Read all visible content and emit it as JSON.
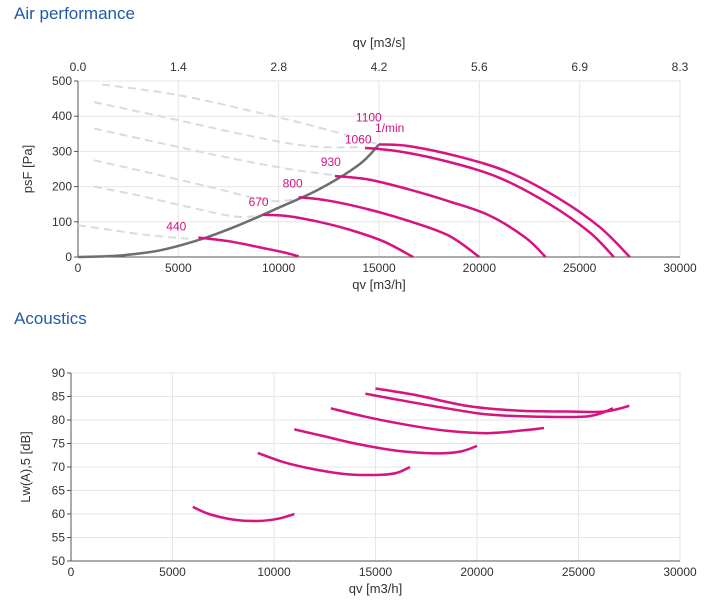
{
  "sections": {
    "air_title": "Air performance",
    "acoustics_title": "Acoustics"
  },
  "colors": {
    "accent": "#d6137f",
    "system_curve": "#6e6e6e",
    "dashed": "#d5dce6",
    "title": "#1f5aa8",
    "grid": "#e6e6e6"
  },
  "chart_data": [
    {
      "type": "line",
      "xlabel": "qv [m3/h]",
      "x2label": "qv [m3/s]",
      "ylabel": "psF [Pa]",
      "xlim": [
        0,
        30000
      ],
      "ylim": [
        0,
        500
      ],
      "xticks": [
        0,
        5000,
        10000,
        15000,
        20000,
        25000,
        30000
      ],
      "yticks": [
        0,
        100,
        200,
        300,
        400,
        500
      ],
      "x2ticks": [
        "0.0",
        "1.4",
        "2.8",
        "4.2",
        "5.6",
        "6.9",
        "8.3"
      ],
      "x2tick_at": [
        0,
        5000,
        10000,
        15000,
        20000,
        25000,
        30000
      ],
      "grid": true,
      "series": [
        {
          "name": "440",
          "label_at": [
            4400,
            75
          ],
          "points": [
            [
              6000,
              55
            ],
            [
              7500,
              45
            ],
            [
              9000,
              28
            ],
            [
              10200,
              14
            ],
            [
              11000,
              2
            ]
          ]
        },
        {
          "name": "670",
          "label_at": [
            8500,
            145
          ],
          "points": [
            [
              9200,
              120
            ],
            [
              10500,
              116
            ],
            [
              12000,
              100
            ],
            [
              13500,
              78
            ],
            [
              15200,
              45
            ],
            [
              16700,
              0
            ]
          ]
        },
        {
          "name": "800",
          "label_at": [
            10200,
            198
          ],
          "points": [
            [
              11000,
              170
            ],
            [
              12500,
              160
            ],
            [
              14500,
              135
            ],
            [
              16500,
              102
            ],
            [
              18500,
              60
            ],
            [
              20000,
              0
            ]
          ]
        },
        {
          "name": "930",
          "label_at": [
            12100,
            258
          ],
          "points": [
            [
              12800,
              230
            ],
            [
              14500,
              220
            ],
            [
              16500,
              192
            ],
            [
              18500,
              158
            ],
            [
              20500,
              118
            ],
            [
              22300,
              55
            ],
            [
              23300,
              0
            ]
          ]
        },
        {
          "name": "1060",
          "label_at": [
            13300,
            322
          ],
          "points": [
            [
              14300,
              310
            ],
            [
              16000,
              300
            ],
            [
              18500,
              270
            ],
            [
              21000,
              225
            ],
            [
              23500,
              150
            ],
            [
              25500,
              70
            ],
            [
              26700,
              0
            ]
          ]
        },
        {
          "name": "1100",
          "label_at": [
            13850,
            385
          ],
          "points": [
            [
              15000,
              320
            ],
            [
              16500,
              315
            ],
            [
              19000,
              285
            ],
            [
              21500,
              240
            ],
            [
              24000,
              165
            ],
            [
              26000,
              85
            ],
            [
              27500,
              0
            ]
          ]
        }
      ],
      "unit_label": {
        "text": "1/min",
        "at": [
          14800,
          355
        ]
      },
      "system_curve": {
        "points": [
          [
            0,
            0
          ],
          [
            2000,
            4
          ],
          [
            4000,
            18
          ],
          [
            6000,
            48
          ],
          [
            8000,
            90
          ],
          [
            10000,
            140
          ],
          [
            12000,
            192
          ],
          [
            14000,
            262
          ],
          [
            15000,
            320
          ]
        ]
      },
      "dashed_curves": [
        {
          "points": [
            [
              0,
              90
            ],
            [
              1500,
              78
            ],
            [
              3500,
              62
            ],
            [
              5500,
              52
            ]
          ]
        },
        {
          "points": [
            [
              800,
              200
            ],
            [
              3000,
              175
            ],
            [
              5500,
              142
            ],
            [
              7800,
              115
            ],
            [
              9200,
              118
            ]
          ]
        },
        {
          "points": [
            [
              800,
              275
            ],
            [
              3500,
              240
            ],
            [
              6500,
              200
            ],
            [
              9500,
              160
            ],
            [
              11200,
              168
            ]
          ]
        },
        {
          "points": [
            [
              800,
              365
            ],
            [
              4000,
              325
            ],
            [
              7500,
              282
            ],
            [
              10500,
              250
            ],
            [
              12800,
              232
            ]
          ]
        },
        {
          "points": [
            [
              800,
              440
            ],
            [
              4500,
              395
            ],
            [
              8500,
              345
            ],
            [
              11500,
              315
            ],
            [
              14000,
              312
            ]
          ]
        },
        {
          "points": [
            [
              1200,
              490
            ],
            [
              5000,
              460
            ],
            [
              9000,
              410
            ],
            [
              12000,
              368
            ],
            [
              15000,
              320
            ]
          ]
        }
      ]
    },
    {
      "type": "line",
      "xlabel": "qv [m3/h]",
      "ylabel": "Lw(A),5 [dB]",
      "xlim": [
        0,
        30000
      ],
      "ylim": [
        50,
        90
      ],
      "xticks": [
        0,
        5000,
        10000,
        15000,
        20000,
        25000,
        30000
      ],
      "yticks": [
        50,
        55,
        60,
        65,
        70,
        75,
        80,
        85,
        90
      ],
      "grid": true,
      "series": [
        {
          "points": [
            [
              6000,
              61.5
            ],
            [
              6800,
              60
            ],
            [
              8000,
              58.8
            ],
            [
              9200,
              58.5
            ],
            [
              10200,
              59
            ],
            [
              11000,
              60
            ]
          ]
        },
        {
          "points": [
            [
              9200,
              73
            ],
            [
              10500,
              71
            ],
            [
              12000,
              69.5
            ],
            [
              13500,
              68.5
            ],
            [
              15000,
              68.3
            ],
            [
              16000,
              68.7
            ],
            [
              16700,
              70
            ]
          ]
        },
        {
          "points": [
            [
              11000,
              78
            ],
            [
              12500,
              76.5
            ],
            [
              14000,
              75
            ],
            [
              16000,
              73.5
            ],
            [
              18000,
              72.9
            ],
            [
              19200,
              73.3
            ],
            [
              20000,
              74.5
            ]
          ]
        },
        {
          "points": [
            [
              12800,
              82.5
            ],
            [
              14500,
              80.7
            ],
            [
              16500,
              79
            ],
            [
              18500,
              77.7
            ],
            [
              20500,
              77.2
            ],
            [
              22300,
              77.8
            ],
            [
              23300,
              78.3
            ]
          ]
        },
        {
          "points": [
            [
              14500,
              85.6
            ],
            [
              16500,
              84
            ],
            [
              18500,
              82.5
            ],
            [
              20500,
              81.2
            ],
            [
              23000,
              80.7
            ],
            [
              25500,
              80.8
            ],
            [
              26700,
              82.5
            ]
          ]
        },
        {
          "points": [
            [
              15000,
              86.7
            ],
            [
              17000,
              85.3
            ],
            [
              19500,
              83
            ],
            [
              22000,
              82
            ],
            [
              24500,
              81.8
            ],
            [
              26300,
              81.8
            ],
            [
              27500,
              83
            ]
          ]
        }
      ]
    }
  ]
}
